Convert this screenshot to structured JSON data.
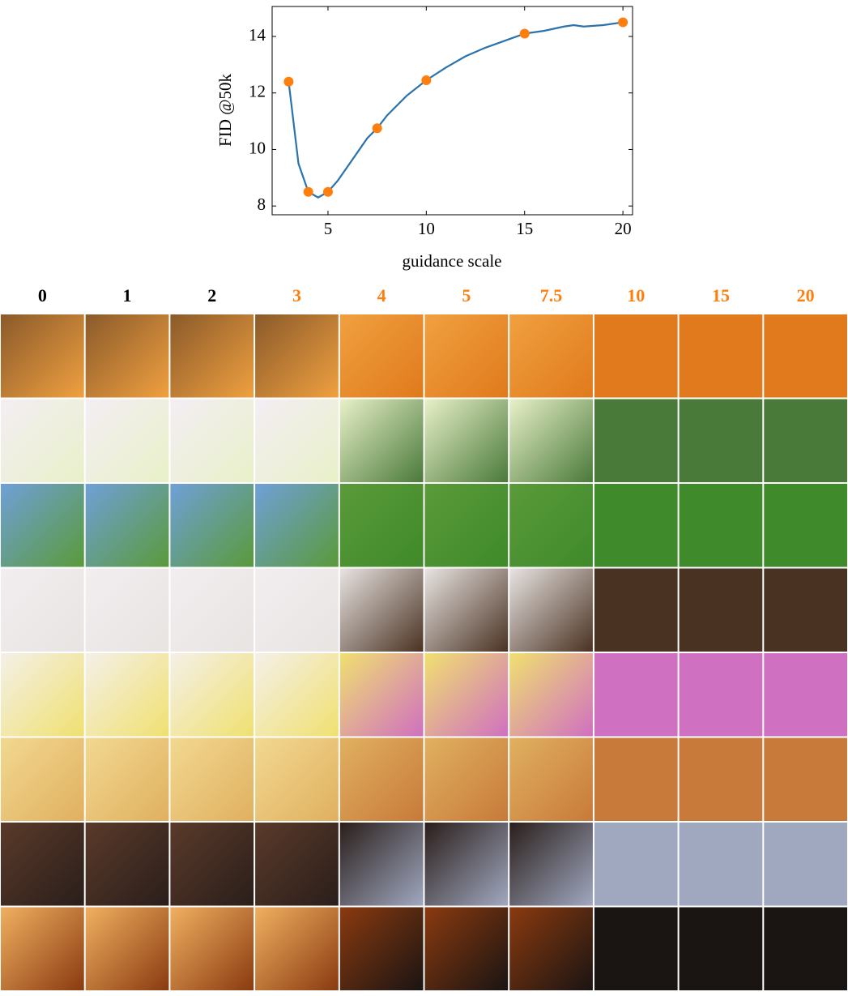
{
  "chart_data": {
    "type": "line",
    "xlabel": "guidance scale",
    "ylabel": "FID @50k",
    "xlim": [
      2.16,
      20.49
    ],
    "ylim": [
      7.69,
      15.06
    ],
    "xticks": [
      5,
      10,
      15,
      20
    ],
    "yticks": [
      8,
      10,
      12,
      14
    ],
    "series": [
      {
        "color": "#2b73ad",
        "marker": false,
        "x": [
          3,
          3.5,
          4,
          4.5,
          5,
          5.5,
          6,
          6.5,
          7,
          7.5,
          8,
          9,
          10,
          11,
          12,
          13,
          14,
          15,
          16,
          17,
          17.5,
          18,
          19,
          20
        ],
        "values": [
          12.4,
          9.5,
          8.5,
          8.3,
          8.5,
          8.9,
          9.4,
          9.9,
          10.4,
          10.75,
          11.2,
          11.9,
          12.45,
          12.9,
          13.3,
          13.6,
          13.85,
          14.1,
          14.2,
          14.35,
          14.4,
          14.35,
          14.4,
          14.5
        ]
      },
      {
        "color": "#ff7f0e",
        "marker": true,
        "x": [
          3,
          4,
          5,
          7.5,
          10,
          15,
          20
        ],
        "values": [
          12.4,
          8.5,
          8.5,
          10.75,
          12.45,
          14.1,
          14.5
        ]
      }
    ]
  },
  "grid": {
    "columns": [
      "0",
      "1",
      "2",
      "3",
      "4",
      "5",
      "7.5",
      "10",
      "15",
      "20"
    ],
    "column_colors": [
      "#000000",
      "#000000",
      "#000000",
      "#ff7f0e",
      "#ff7f0e",
      "#ff7f0e",
      "#ff7f0e",
      "#ff7f0e",
      "#ff7f0e",
      "#ff7f0e"
    ]
  }
}
